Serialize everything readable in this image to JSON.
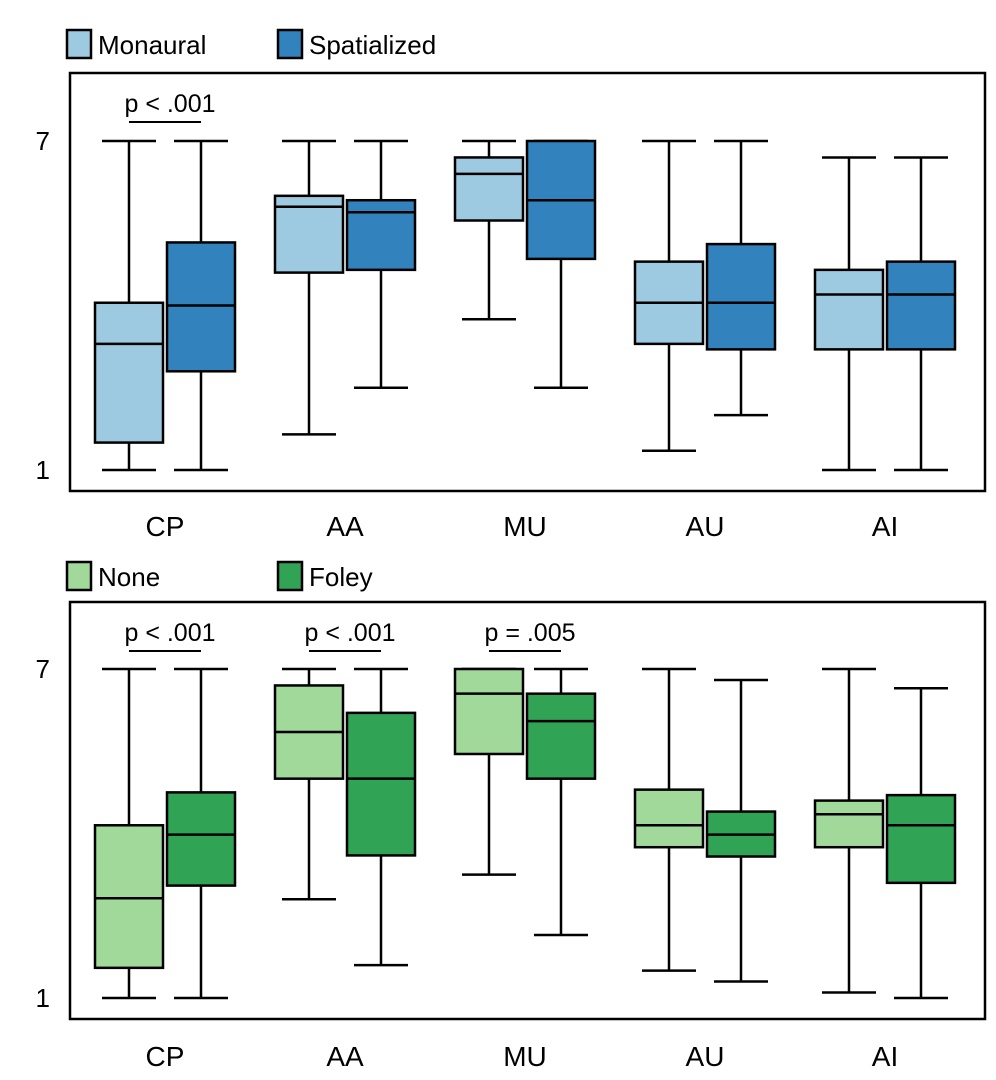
{
  "chart_data": [
    {
      "type": "boxplot",
      "categories": [
        "CP",
        "AA",
        "MU",
        "AU",
        "AI"
      ],
      "yticks": [
        "1",
        "7"
      ],
      "ylim": [
        1,
        7
      ],
      "legend": "top-left",
      "grid": false,
      "series": [
        {
          "name": "Monaural",
          "color": "#9ecae1",
          "boxes": [
            {
              "min": 1,
              "q1": 1.5,
              "median": 3.3,
              "q3": 4.05,
              "max": 7
            },
            {
              "min": 1.65,
              "q1": 4.6,
              "median": 5.8,
              "q3": 6.0,
              "max": 7
            },
            {
              "min": 3.75,
              "q1": 5.55,
              "median": 6.4,
              "q3": 6.7,
              "max": 7
            },
            {
              "min": 1.35,
              "q1": 3.3,
              "median": 4.05,
              "q3": 4.8,
              "max": 7
            },
            {
              "min": 1,
              "q1": 3.2,
              "median": 4.2,
              "q3": 4.65,
              "max": 6.7
            }
          ]
        },
        {
          "name": "Spatialized",
          "color": "#3182bd",
          "boxes": [
            {
              "min": 1,
              "q1": 2.8,
              "median": 4.0,
              "q3": 5.15,
              "max": 7
            },
            {
              "min": 2.5,
              "q1": 4.65,
              "median": 5.7,
              "q3": 5.92,
              "max": 7
            },
            {
              "min": 2.5,
              "q1": 4.85,
              "median": 5.92,
              "q3": 7,
              "max": 7
            },
            {
              "min": 2.0,
              "q1": 3.2,
              "median": 4.05,
              "q3": 5.12,
              "max": 7
            },
            {
              "min": 1,
              "q1": 3.2,
              "median": 4.2,
              "q3": 4.8,
              "max": 6.7
            }
          ]
        }
      ],
      "annotations": [
        {
          "text": "p < .001",
          "category": "CP"
        }
      ]
    },
    {
      "type": "boxplot",
      "categories": [
        "CP",
        "AA",
        "MU",
        "AU",
        "AI"
      ],
      "yticks": [
        "1",
        "7"
      ],
      "ylim": [
        1,
        7
      ],
      "legend": "top-left",
      "grid": false,
      "series": [
        {
          "name": "None",
          "color": "#a1d99b",
          "boxes": [
            {
              "min": 1,
              "q1": 1.55,
              "median": 2.82,
              "q3": 4.15,
              "max": 7
            },
            {
              "min": 2.8,
              "q1": 5.0,
              "median": 5.85,
              "q3": 6.7,
              "max": 7
            },
            {
              "min": 3.25,
              "q1": 5.45,
              "median": 6.55,
              "q3": 7,
              "max": 7
            },
            {
              "min": 1.5,
              "q1": 3.75,
              "median": 4.15,
              "q3": 4.8,
              "max": 7
            },
            {
              "min": 1.1,
              "q1": 3.75,
              "median": 4.35,
              "q3": 4.6,
              "max": 7
            }
          ]
        },
        {
          "name": "Foley",
          "color": "#31a354",
          "boxes": [
            {
              "min": 1,
              "q1": 3.05,
              "median": 3.98,
              "q3": 4.75,
              "max": 7
            },
            {
              "min": 1.6,
              "q1": 3.6,
              "median": 5.0,
              "q3": 6.2,
              "max": 7
            },
            {
              "min": 2.15,
              "q1": 5.0,
              "median": 6.05,
              "q3": 6.55,
              "max": 7
            },
            {
              "min": 1.3,
              "q1": 3.58,
              "median": 3.98,
              "q3": 4.4,
              "max": 6.8
            },
            {
              "min": 1,
              "q1": 3.1,
              "median": 4.15,
              "q3": 4.7,
              "max": 6.65
            }
          ]
        }
      ],
      "annotations": [
        {
          "text": "p < .001",
          "category": "CP"
        },
        {
          "text": "p < .001",
          "category": "AA"
        },
        {
          "text": "p = .005",
          "category": "MU"
        }
      ]
    }
  ]
}
